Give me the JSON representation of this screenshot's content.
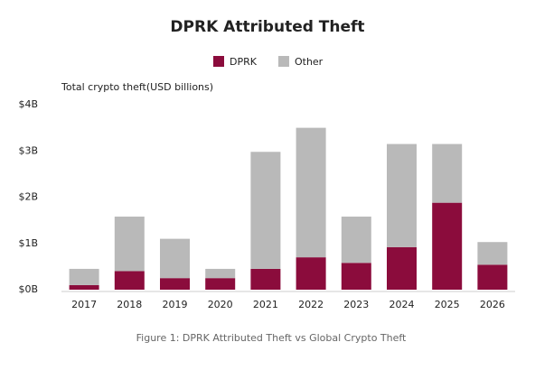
{
  "chart_data": {
    "type": "stacked-bar",
    "title": "DPRK Attributed Theft",
    "y_label": "Total crypto theft(USD billions)",
    "caption": "Figure 1: DPRK Attributed Theft vs Global Crypto Theft",
    "categories": [
      "2017",
      "2018",
      "2019",
      "2020",
      "2021",
      "2022",
      "2023",
      "2024",
      "2025",
      "2026"
    ],
    "series": [
      {
        "name": "DPRK",
        "color": "#8b0c3c",
        "values": [
          0.1,
          0.4,
          0.25,
          0.25,
          0.45,
          0.7,
          0.58,
          0.92,
          1.88,
          0.54
        ]
      },
      {
        "name": "Other",
        "color": "#b9b9b9",
        "values": [
          0.35,
          1.18,
          0.85,
          0.2,
          2.53,
          2.8,
          1.0,
          2.23,
          1.27,
          0.49
        ]
      }
    ],
    "ylim": [
      0,
      4
    ],
    "yticks": [
      {
        "value": 0,
        "label": "$0B"
      },
      {
        "value": 1,
        "label": "$1B"
      },
      {
        "value": 2,
        "label": "$2B"
      },
      {
        "value": 3,
        "label": "$3B"
      },
      {
        "value": 4,
        "label": "$4B"
      }
    ],
    "grid": false,
    "legend": "top"
  }
}
